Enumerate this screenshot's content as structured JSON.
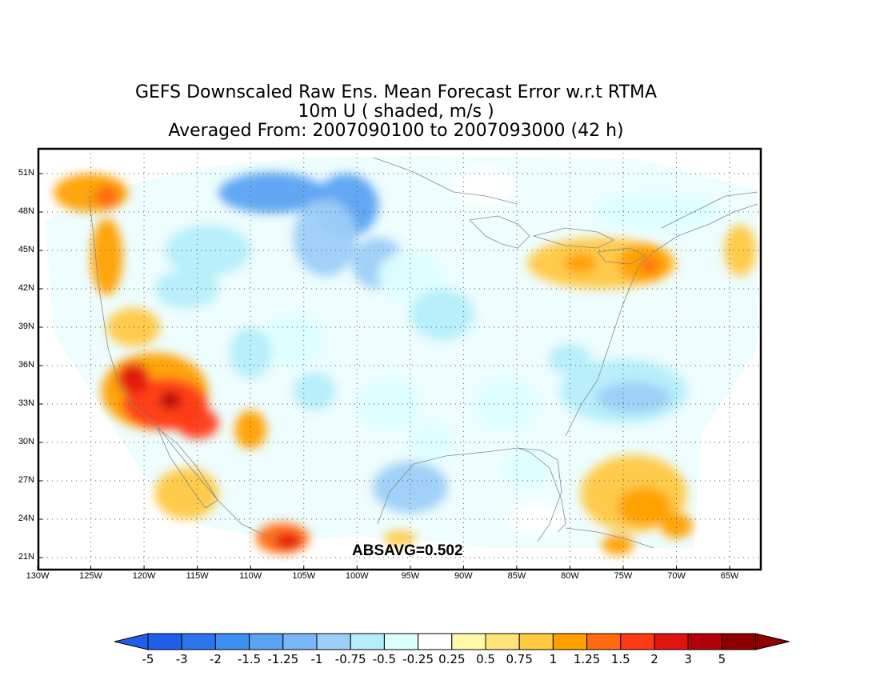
{
  "titles": {
    "line1": "GEFS Downscaled Raw Ens. Mean Forecast Error w.r.t RTMA",
    "line2": "10m U ( shaded, m/s )",
    "line3": "Averaged From: 2007090100 to 2007093000 (42 h)"
  },
  "annotation": "ABSAVG=0.502",
  "map": {
    "lon_range": [
      -130,
      -62
    ],
    "lat_range": [
      20,
      53
    ],
    "lon_ticks": [
      "130W",
      "125W",
      "120W",
      "115W",
      "110W",
      "105W",
      "100W",
      "95W",
      "90W",
      "85W",
      "80W",
      "75W",
      "70W",
      "65W"
    ],
    "lat_ticks": [
      "21N",
      "24N",
      "27N",
      "30N",
      "33N",
      "36N",
      "39N",
      "42N",
      "45N",
      "48N",
      "51N"
    ],
    "grid": "dotted",
    "background": "#ffffff"
  },
  "colorbar": {
    "labels": [
      "-5",
      "-3",
      "-2",
      "-1.5",
      "-1.25",
      "-1",
      "-0.75",
      "-0.5",
      "-0.25",
      "0.25",
      "0.5",
      "0.75",
      "1",
      "1.25",
      "1.5",
      "2",
      "3",
      "5"
    ],
    "colors": [
      "#1e5ee8",
      "#2c74ec",
      "#3c8ef0",
      "#5aa2f2",
      "#78b6f6",
      "#9ccff8",
      "#b4eefa",
      "#dcffff",
      "#ffffff",
      "#fff9a8",
      "#ffe478",
      "#ffc840",
      "#ffa000",
      "#ff6a10",
      "#ff3a14",
      "#e0140e",
      "#b40008",
      "#900000"
    ],
    "left_arrow_color": "#1e5ee8",
    "right_arrow_color": "#900000"
  },
  "blobs": [
    {
      "lon": -108,
      "lat": 49.5,
      "rx": 5,
      "ry": 1.6,
      "v": -1.5
    },
    {
      "lon": -101,
      "lat": 48.5,
      "rx": 3,
      "ry": 2.5,
      "v": -1.5
    },
    {
      "lon": -103,
      "lat": 46,
      "rx": 3,
      "ry": 3,
      "v": -1
    },
    {
      "lon": -98,
      "lat": 44,
      "rx": 2.5,
      "ry": 2,
      "v": -1
    },
    {
      "lon": -114,
      "lat": 45,
      "rx": 4,
      "ry": 2,
      "v": -0.75
    },
    {
      "lon": -116,
      "lat": 42,
      "rx": 3,
      "ry": 1.5,
      "v": -0.75
    },
    {
      "lon": -95,
      "lat": 43,
      "rx": 3,
      "ry": 2,
      "v": -0.5
    },
    {
      "lon": -92,
      "lat": 40,
      "rx": 3,
      "ry": 2,
      "v": -0.75
    },
    {
      "lon": -106,
      "lat": 38,
      "rx": 3,
      "ry": 2,
      "v": -0.5
    },
    {
      "lon": -110,
      "lat": 37,
      "rx": 2,
      "ry": 2,
      "v": -0.75
    },
    {
      "lon": -104,
      "lat": 34,
      "rx": 2,
      "ry": 1.5,
      "v": -0.75
    },
    {
      "lon": -97,
      "lat": 33,
      "rx": 3,
      "ry": 2,
      "v": -0.5
    },
    {
      "lon": -93,
      "lat": 30,
      "rx": 2,
      "ry": 1.5,
      "v": -0.5
    },
    {
      "lon": -95,
      "lat": 26.5,
      "rx": 3.5,
      "ry": 2,
      "v": -1
    },
    {
      "lon": -86,
      "lat": 33,
      "rx": 3,
      "ry": 2,
      "v": -0.5
    },
    {
      "lon": -84,
      "lat": 28,
      "rx": 2,
      "ry": 1.5,
      "v": -0.5
    },
    {
      "lon": -75,
      "lat": 34,
      "rx": 6,
      "ry": 2.5,
      "v": -0.75
    },
    {
      "lon": -74,
      "lat": 33.5,
      "rx": 3.5,
      "ry": 1.2,
      "v": -1
    },
    {
      "lon": -80,
      "lat": 36.5,
      "rx": 2,
      "ry": 1.2,
      "v": -0.75
    },
    {
      "lon": -72,
      "lat": 48,
      "rx": 6,
      "ry": 1.5,
      "v": -0.5
    },
    {
      "lon": -88,
      "lat": 50,
      "rx": 3,
      "ry": 1.5,
      "v": -0.25
    },
    {
      "lon": -83,
      "lat": 24,
      "rx": 3,
      "ry": 1.2,
      "v": -0.25
    },
    {
      "lon": -125,
      "lat": 49.5,
      "rx": 3.5,
      "ry": 1.5,
      "v": 0.75
    },
    {
      "lon": -123.5,
      "lat": 49.2,
      "rx": 1.2,
      "ry": 0.9,
      "v": 1
    },
    {
      "lon": -123.5,
      "lat": 44.5,
      "rx": 1.5,
      "ry": 3,
      "v": 0.75
    },
    {
      "lon": -121,
      "lat": 39,
      "rx": 2.5,
      "ry": 1.5,
      "v": 0.5
    },
    {
      "lon": -119,
      "lat": 34,
      "rx": 5,
      "ry": 3,
      "v": 0.75
    },
    {
      "lon": -118,
      "lat": 33,
      "rx": 4,
      "ry": 2,
      "v": 1.25
    },
    {
      "lon": -121,
      "lat": 35,
      "rx": 1.5,
      "ry": 1.2,
      "v": 1.5
    },
    {
      "lon": -115,
      "lat": 31.5,
      "rx": 2,
      "ry": 1.2,
      "v": 1.25
    },
    {
      "lon": -117.5,
      "lat": 33.3,
      "rx": 1,
      "ry": 0.7,
      "v": 2
    },
    {
      "lon": -110,
      "lat": 31,
      "rx": 1.5,
      "ry": 1.5,
      "v": 0.75
    },
    {
      "lon": -116,
      "lat": 26,
      "rx": 3,
      "ry": 2,
      "v": 0.5
    },
    {
      "lon": -107,
      "lat": 22.5,
      "rx": 2.5,
      "ry": 1.2,
      "v": 1
    },
    {
      "lon": -106.5,
      "lat": 22.3,
      "rx": 1.2,
      "ry": 0.6,
      "v": 1.5
    },
    {
      "lon": -96,
      "lat": 22.5,
      "rx": 1.5,
      "ry": 0.6,
      "v": 0.5
    },
    {
      "lon": -77,
      "lat": 44,
      "rx": 7,
      "ry": 2,
      "v": 0.5
    },
    {
      "lon": -73,
      "lat": 44,
      "rx": 2.5,
      "ry": 1.5,
      "v": 0.75
    },
    {
      "lon": -72.5,
      "lat": 43.8,
      "rx": 0.8,
      "ry": 0.6,
      "v": 1
    },
    {
      "lon": -79,
      "lat": 44,
      "rx": 1.5,
      "ry": 0.8,
      "v": 0.75
    },
    {
      "lon": -64,
      "lat": 45,
      "rx": 1.5,
      "ry": 2,
      "v": 0.5
    },
    {
      "lon": -74,
      "lat": 26,
      "rx": 5,
      "ry": 3,
      "v": 0.5
    },
    {
      "lon": -73,
      "lat": 25,
      "rx": 2.5,
      "ry": 1.5,
      "v": 0.75
    },
    {
      "lon": -75.5,
      "lat": 22,
      "rx": 1.5,
      "ry": 0.8,
      "v": 0.75
    },
    {
      "lon": -70,
      "lat": 23.5,
      "rx": 1.5,
      "ry": 1,
      "v": 0.75
    }
  ]
}
